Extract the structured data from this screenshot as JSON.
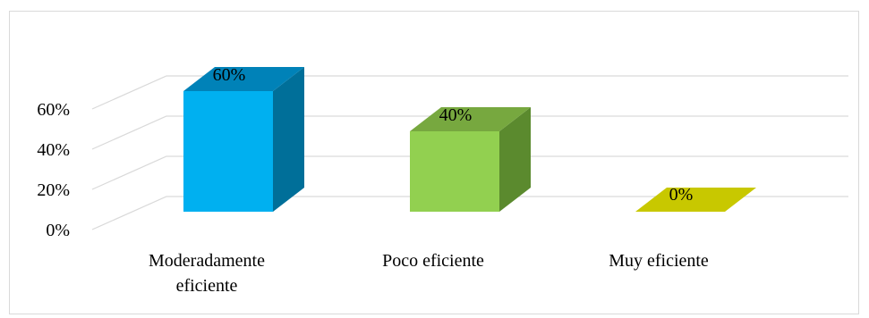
{
  "chart_data": {
    "type": "bar",
    "style": "3d-column",
    "categories": [
      [
        "Moderadamente",
        "eficiente"
      ],
      [
        "Poco eficiente"
      ],
      [
        "Muy eficiente"
      ]
    ],
    "values": [
      60,
      40,
      0
    ],
    "data_labels": [
      "60%",
      "40%",
      "0%"
    ],
    "y_ticks": [
      "0%",
      "20%",
      "40%",
      "60%"
    ],
    "ylim": [
      0,
      60
    ],
    "grid": true,
    "legend": false,
    "colors": [
      {
        "front": "#00b0f0",
        "side": "#006f99",
        "top": "#0082b8"
      },
      {
        "front": "#92d050",
        "side": "#5b8a2e",
        "top": "#77a83f"
      },
      {
        "front": "#c8c800",
        "side": "#9a9a00",
        "top": "#c8c800"
      }
    ]
  }
}
